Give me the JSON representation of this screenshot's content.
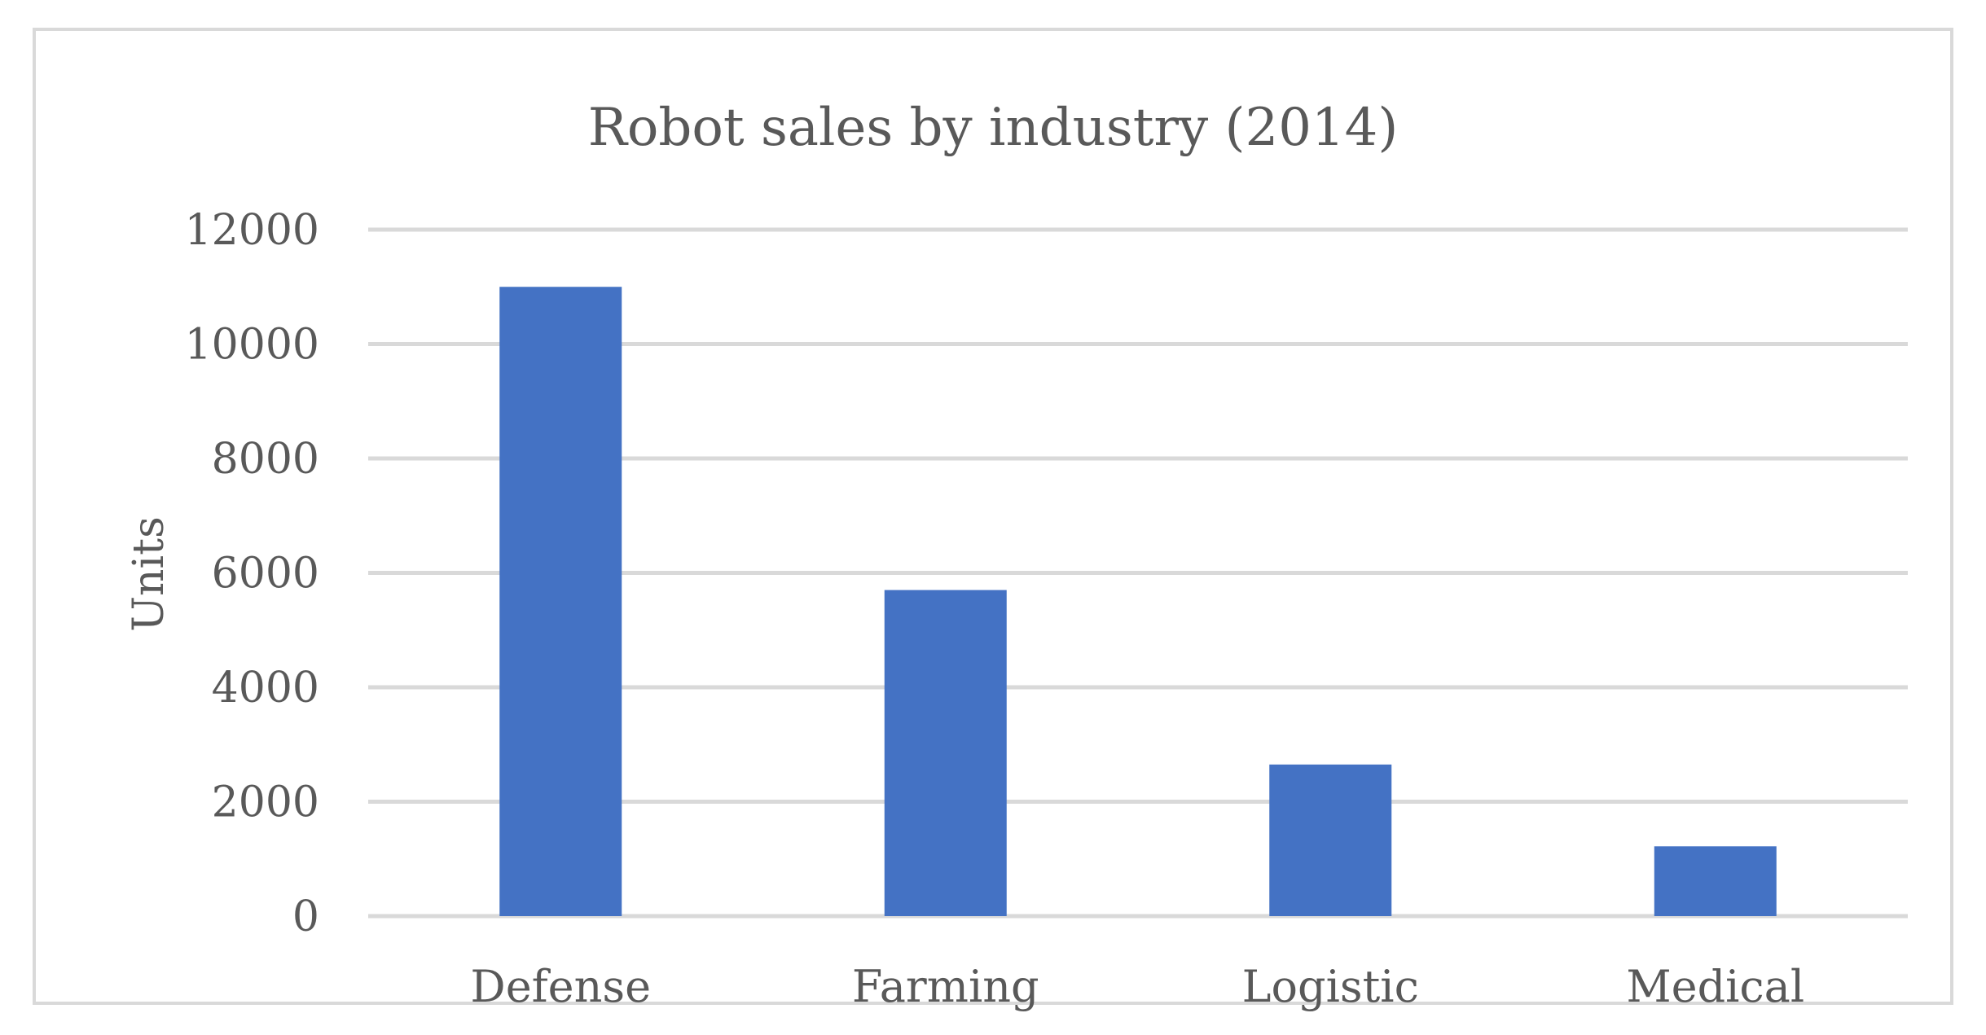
{
  "chart_data": {
    "type": "bar",
    "title": "Robot sales by industry (2014)",
    "xlabel": "",
    "ylabel": "Units",
    "categories": [
      "Defense",
      "Farming",
      "Logistic",
      "Medical"
    ],
    "values": [
      11000,
      5700,
      2650,
      1220
    ],
    "ylim": [
      0,
      12000
    ],
    "yticks": [
      "0",
      "2000",
      "4000",
      "6000",
      "8000",
      "10000",
      "12000"
    ],
    "grid": true,
    "legend": "none",
    "colors": {
      "bar": "#4472c4",
      "grid": "#d9d9d9",
      "text": "#595959",
      "border": "#d9d9d9"
    }
  }
}
